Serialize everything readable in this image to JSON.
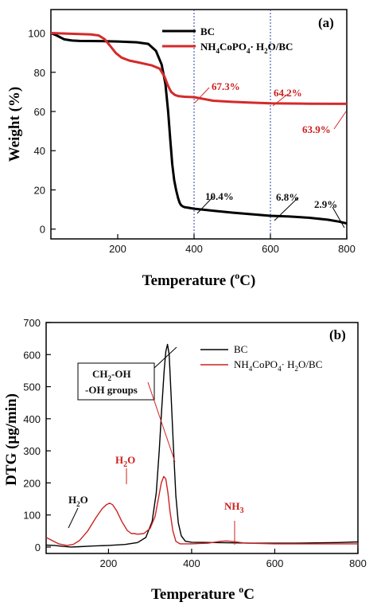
{
  "chart_data": [
    {
      "type": "line",
      "panel_label": "(a)",
      "xlabel": "Temperature (°C)",
      "xlabel_main": "Temperature (",
      "xlabel_sup": "o",
      "xlabel_end": "C)",
      "ylabel": "Weight (%)",
      "xlim": [
        25,
        800
      ],
      "ylim": [
        -5,
        112
      ],
      "xticks": [
        200,
        400,
        600,
        800
      ],
      "yticks": [
        0,
        20,
        40,
        60,
        80,
        100
      ],
      "reference_lines_x": [
        400,
        600
      ],
      "legend_position": "top-right",
      "series": [
        {
          "name": "BC",
          "color": "#000000",
          "x": [
            25,
            40,
            60,
            80,
            100,
            150,
            200,
            250,
            280,
            300,
            315,
            325,
            332,
            338,
            343,
            348,
            353,
            358,
            362,
            366,
            370,
            375,
            385,
            400,
            450,
            500,
            550,
            600,
            650,
            700,
            750,
            780,
            800
          ],
          "y": [
            100,
            98.8,
            96.8,
            96.2,
            96,
            95.9,
            95.7,
            95.3,
            94.5,
            91,
            84,
            74,
            60,
            45,
            33,
            25,
            20,
            16,
            13.5,
            12.2,
            11.6,
            11.2,
            10.9,
            10.4,
            9.4,
            8.4,
            7.6,
            6.8,
            6.4,
            5.8,
            4.8,
            3.8,
            2.9
          ]
        },
        {
          "name": "NH4CoPO4·H2O/BC",
          "legend_parts": [
            "NH",
            "4",
            "CoPO",
            "4",
            "· H",
            "2",
            "O/BC"
          ],
          "color": "#d42a2a",
          "x": [
            25,
            100,
            130,
            150,
            165,
            180,
            195,
            210,
            230,
            260,
            290,
            310,
            322,
            332,
            340,
            350,
            360,
            375,
            400,
            450,
            500,
            550,
            600,
            700,
            800
          ],
          "y": [
            100,
            99.5,
            99.3,
            98.8,
            97,
            93.5,
            89.8,
            87.5,
            86,
            84.8,
            83.5,
            81.8,
            78,
            73,
            70,
            68.4,
            67.8,
            67.5,
            67.3,
            65.5,
            64.9,
            64.5,
            64.2,
            64,
            63.9
          ]
        }
      ],
      "annotations": [
        {
          "text": "67.3%",
          "color": "red",
          "x": 400,
          "y": 67.3
        },
        {
          "text": "64.2%",
          "color": "red",
          "x": 600,
          "y": 64.2
        },
        {
          "text": "63.9%",
          "color": "red",
          "x": 800,
          "y": 63.9
        },
        {
          "text": "10.4%",
          "color": "black",
          "x": 400,
          "y": 10.4
        },
        {
          "text": "6.8%",
          "color": "black",
          "x": 600,
          "y": 6.8
        },
        {
          "text": "2.9%",
          "color": "black",
          "x": 800,
          "y": 2.9
        }
      ]
    },
    {
      "type": "line",
      "panel_label": "(b)",
      "xlabel": "Temperature °C",
      "xlabel_main": "Temperature ",
      "xlabel_sup": "o",
      "xlabel_end": "C",
      "ylabel": "DTG (μg/min)",
      "xlim": [
        50,
        800
      ],
      "ylim": [
        -20,
        700
      ],
      "xticks": [
        200,
        400,
        600,
        800
      ],
      "yticks": [
        0,
        100,
        200,
        300,
        400,
        500,
        600,
        700
      ],
      "legend_position": "top-right",
      "series": [
        {
          "name": "BC",
          "color": "#000000",
          "x": [
            50,
            70,
            90,
            110,
            130,
            160,
            200,
            240,
            270,
            290,
            305,
            315,
            322,
            328,
            334,
            338,
            342,
            346,
            350,
            356,
            362,
            368,
            375,
            385,
            400,
            450,
            500,
            550,
            600,
            650,
            700,
            750,
            800
          ],
          "y": [
            6,
            5,
            2,
            0,
            1,
            3,
            5,
            8,
            14,
            30,
            80,
            170,
            300,
            430,
            550,
            610,
            632,
            600,
            490,
            320,
            160,
            75,
            35,
            18,
            15,
            14,
            13,
            12,
            12,
            12,
            13,
            14,
            16
          ]
        },
        {
          "name": "NH4CoPO4·H2O/BC",
          "legend_parts": [
            "NH",
            "4",
            "CoPO",
            "4",
            "· H",
            "2",
            "O/BC"
          ],
          "color": "#cc2222",
          "x": [
            50,
            65,
            80,
            100,
            115,
            130,
            150,
            170,
            185,
            195,
            203,
            210,
            220,
            232,
            245,
            255,
            262,
            270,
            285,
            300,
            312,
            320,
            327,
            333,
            338,
            343,
            348,
            355,
            362,
            372,
            385,
            400,
            440,
            470,
            485,
            500,
            530,
            600,
            700,
            800
          ],
          "y": [
            30,
            20,
            10,
            5,
            8,
            20,
            50,
            92,
            120,
            132,
            137,
            132,
            112,
            80,
            52,
            42,
            42,
            40,
            42,
            58,
            95,
            150,
            200,
            220,
            212,
            170,
            110,
            50,
            18,
            10,
            10,
            10,
            12,
            18,
            19,
            17,
            12,
            10,
            10,
            10
          ]
        }
      ],
      "annotations": [
        {
          "text": "H2O",
          "parts": [
            "H",
            "2",
            "O"
          ],
          "color": "black",
          "x": 75,
          "y": 30
        },
        {
          "text": "H2O",
          "parts": [
            "H",
            "2",
            "O"
          ],
          "color": "red",
          "x": 205,
          "y": 140
        },
        {
          "text": "NH3",
          "parts": [
            "NH",
            "3"
          ],
          "color": "red",
          "x": 485,
          "y": 20
        },
        {
          "text": "CH2-OH",
          "parts": [
            "CH",
            "2",
            "-OH"
          ],
          "color": "black",
          "x": 340,
          "y": 632
        },
        {
          "text": "-OH groups",
          "color": "black",
          "x": 335,
          "y": 220
        }
      ]
    }
  ]
}
